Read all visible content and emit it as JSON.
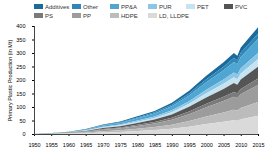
{
  "chart_data": {
    "type": "area",
    "stacked": true,
    "y_label": "Primary Plastic Production (in Mt)",
    "x": [
      1950,
      1955,
      1960,
      1965,
      1970,
      1975,
      1980,
      1985,
      1990,
      1995,
      2000,
      2005,
      2008,
      2009,
      2010,
      2015
    ],
    "xlim": [
      1950,
      2015
    ],
    "xticks": [
      1950,
      1955,
      1960,
      1965,
      1970,
      1975,
      1980,
      1985,
      1990,
      1995,
      2000,
      2005,
      2010,
      2015
    ],
    "ylim": [
      0,
      400
    ],
    "yticks": [
      0,
      50,
      100,
      150,
      200,
      250,
      300,
      350,
      400
    ],
    "legend": "top",
    "series": [
      {
        "name": "Additives",
        "color": "#1b6a9c",
        "values": [
          0.1,
          0.2,
          0.5,
          1.1,
          2.1,
          2.8,
          3.9,
          5.1,
          6.9,
          9.6,
          12.9,
          15.9,
          18.0,
          17.4,
          19.2,
          23.7
        ]
      },
      {
        "name": "Other",
        "color": "#2f86b8",
        "values": [
          0.1,
          0.2,
          0.4,
          0.9,
          1.8,
          2.3,
          3.3,
          4.3,
          5.8,
          8.0,
          10.8,
          13.3,
          15.0,
          14.5,
          16.0,
          19.8
        ]
      },
      {
        "name": "PP&A",
        "color": "#4fa6d3",
        "values": [
          0.3,
          0.5,
          1.0,
          2.3,
          4.6,
          6.0,
          8.5,
          11.1,
          15.0,
          20.8,
          28.0,
          34.5,
          39.0,
          37.7,
          41.6,
          51.4
        ]
      },
      {
        "name": "PUR",
        "color": "#8cc6e6",
        "values": [
          0.1,
          0.2,
          0.5,
          1.1,
          2.1,
          2.8,
          3.9,
          5.1,
          6.9,
          9.6,
          12.9,
          15.9,
          18.0,
          17.4,
          19.2,
          23.7
        ]
      },
      {
        "name": "PET",
        "color": "#c6e3f2",
        "values": [
          0.1,
          0.3,
          0.6,
          1.3,
          2.5,
          3.2,
          4.6,
          6.0,
          8.1,
          11.2,
          15.1,
          18.6,
          21.0,
          20.3,
          22.4,
          27.7
        ]
      },
      {
        "name": "PVC",
        "color": "#555555",
        "values": [
          0.2,
          0.4,
          0.9,
          2.0,
          3.9,
          5.1,
          7.2,
          9.4,
          12.7,
          17.6,
          23.7,
          29.2,
          33.0,
          31.9,
          35.2,
          43.5
        ]
      },
      {
        "name": "PS",
        "color": "#7a7a7a",
        "values": [
          0.1,
          0.2,
          0.5,
          1.1,
          2.1,
          2.8,
          3.9,
          5.1,
          6.9,
          9.6,
          12.9,
          15.9,
          18.0,
          17.4,
          19.2,
          23.7
        ]
      },
      {
        "name": "PP",
        "color": "#9c9c9c",
        "values": [
          0.3,
          0.6,
          1.3,
          2.9,
          5.6,
          7.4,
          10.4,
          13.6,
          18.4,
          25.6,
          34.4,
          42.4,
          48.0,
          46.4,
          51.2,
          63.2
        ]
      },
      {
        "name": "HDPE",
        "color": "#bcbcbc",
        "values": [
          0.3,
          0.5,
          1.0,
          2.3,
          4.6,
          6.0,
          8.5,
          11.1,
          15.0,
          20.8,
          28.0,
          34.5,
          39.0,
          37.7,
          41.6,
          51.4
        ]
      },
      {
        "name": "LD, LLDPE",
        "color": "#dadada",
        "values": [
          0.3,
          0.7,
          1.4,
          3.1,
          6.0,
          7.8,
          11.1,
          14.5,
          19.6,
          27.2,
          36.6,
          45.1,
          51.0,
          49.3,
          54.4,
          67.2
        ]
      }
    ]
  }
}
